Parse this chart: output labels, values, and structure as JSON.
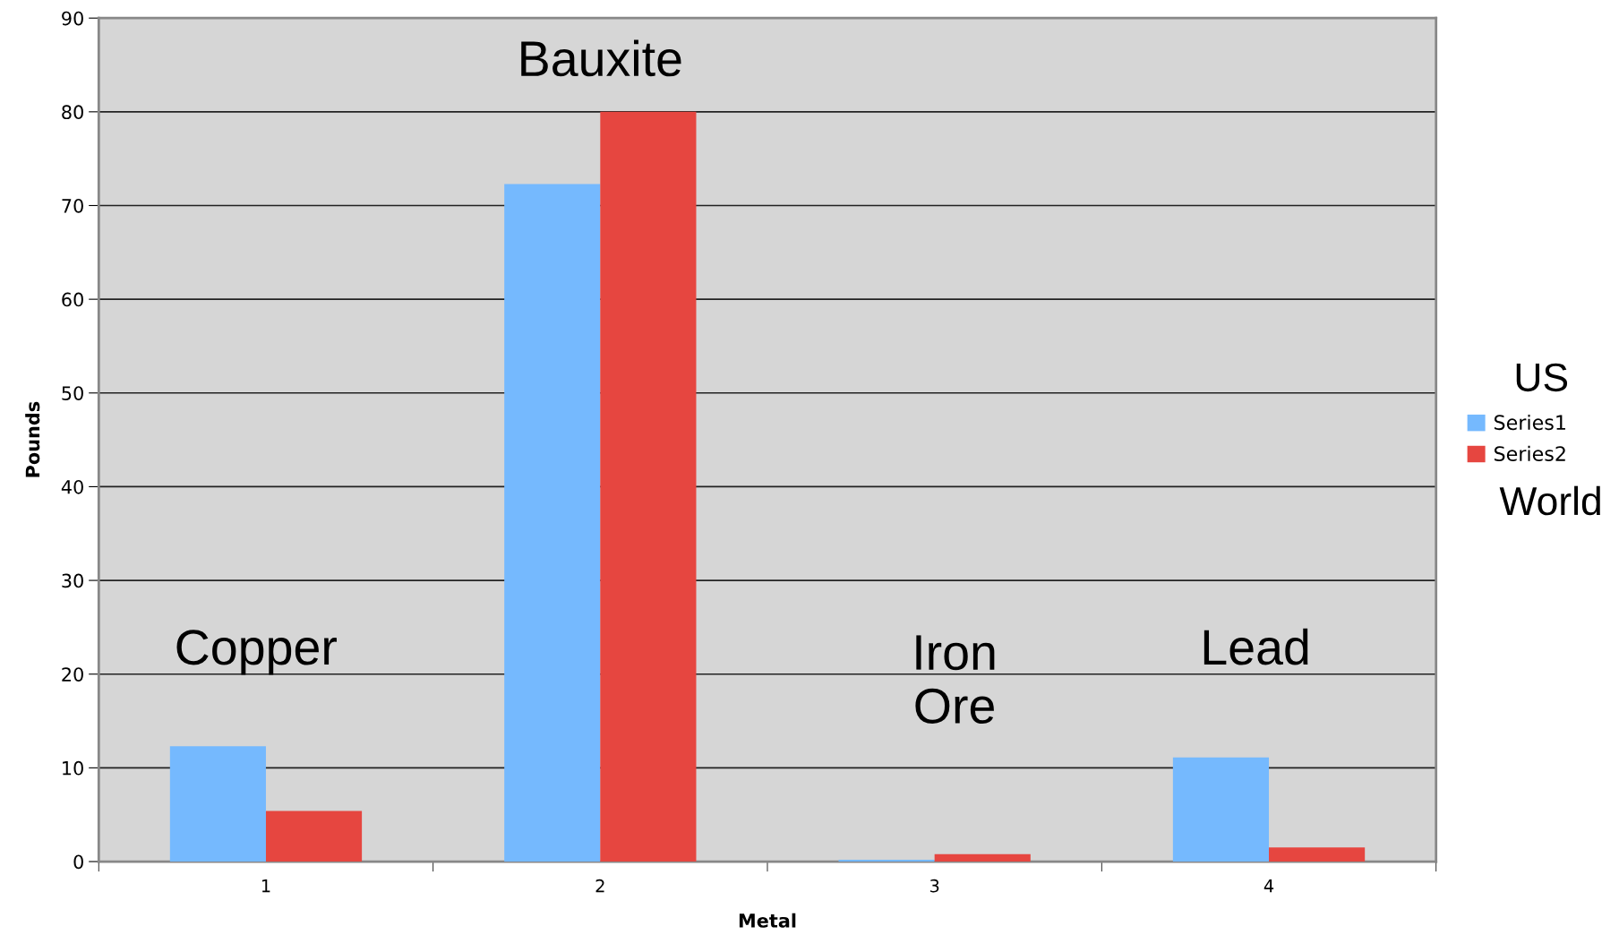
{
  "chart_data": {
    "type": "bar",
    "xlabel": "Metal",
    "ylabel": "Pounds",
    "categories": [
      "1",
      "2",
      "3",
      "4"
    ],
    "series": [
      {
        "name": "Series1",
        "color": "#75b9fe",
        "values": [
          12.3,
          72.3,
          0.2,
          11.1
        ]
      },
      {
        "name": "Series2",
        "color": "#e64640",
        "values": [
          5.4,
          80,
          0.8,
          1.5
        ]
      }
    ],
    "ylim": [
      0,
      90
    ],
    "yticks": [
      0,
      10,
      20,
      30,
      40,
      50,
      60,
      70,
      80,
      90
    ],
    "grid": "y",
    "legend": "right",
    "annotations": [
      "Copper",
      "Bauxite",
      "Iron\nOre",
      "Lead",
      "US",
      "World"
    ]
  }
}
